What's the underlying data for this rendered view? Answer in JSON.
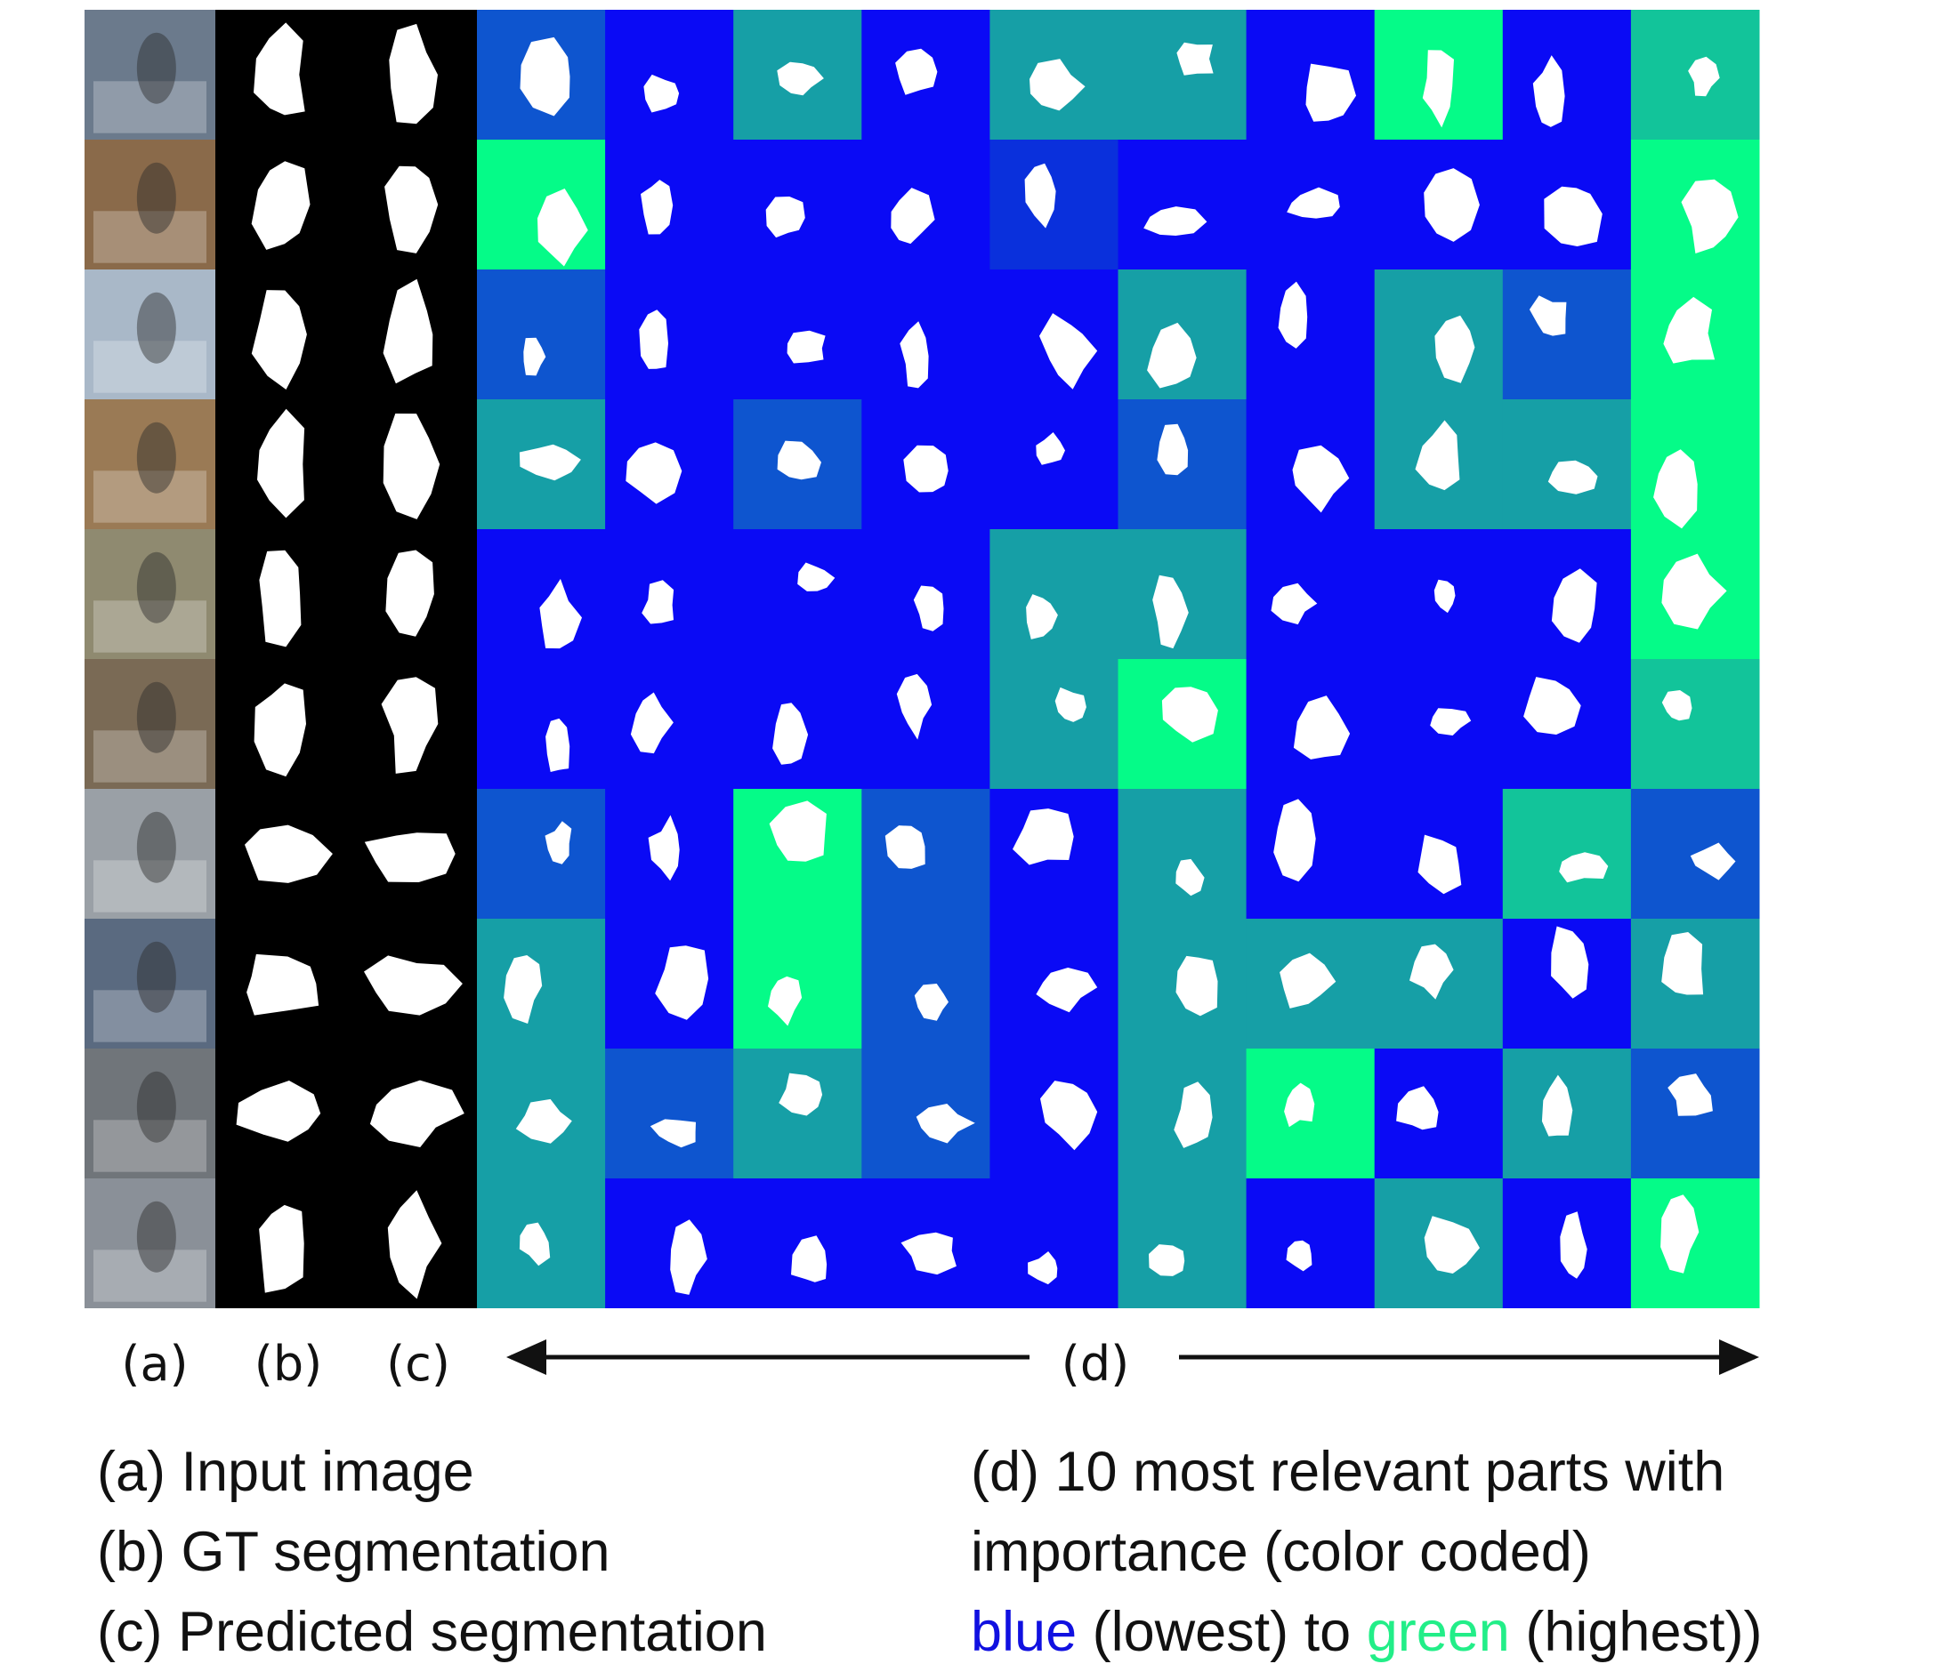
{
  "figure": {
    "column_labels": [
      "(a)",
      "(b)",
      "(c)",
      "(d)"
    ]
  },
  "caption": {
    "left": [
      "(a) Input image",
      "(b) GT segmentation",
      "(c) Predicted segmentation"
    ],
    "right": [
      "(d) 10 most relevant parts with",
      "importance (color coded)"
    ],
    "scale_line": {
      "low_word": "blue",
      "low_text": "(lowest) to",
      "high_word": "green",
      "high_text": "(highest))"
    }
  }
}
